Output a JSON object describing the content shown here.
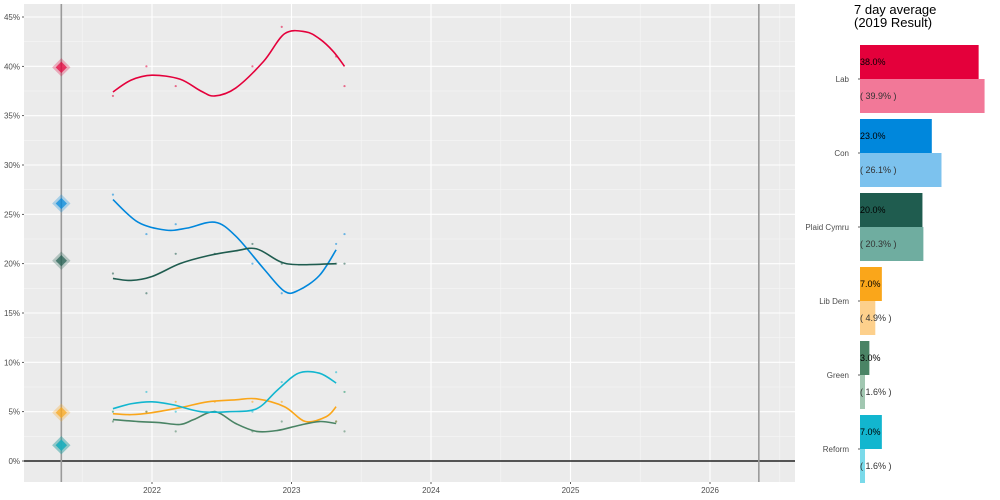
{
  "chart_data": [
    {
      "type": "line",
      "ylim": [
        0,
        46
      ],
      "xlim": [
        2021.1,
        2026.6
      ],
      "y_ticks": [
        0,
        5,
        10,
        15,
        20,
        25,
        30,
        35,
        40,
        45
      ],
      "y_tick_labels": [
        "0%",
        "5%",
        "10%",
        "15%",
        "20%",
        "25%",
        "30%",
        "35%",
        "40%",
        "45%"
      ],
      "x_ticks": [
        2022,
        2023,
        2024,
        2025,
        2026
      ],
      "x_tick_labels": [
        "2022",
        "2023",
        "2024",
        "2025",
        "2026"
      ],
      "election_lines": [
        2021.35,
        2026.35
      ],
      "grid": true,
      "series": [
        {
          "name": "Lab",
          "color": "#e4003b",
          "trend": [
            [
              2021.72,
              37.4
            ],
            [
              2021.85,
              38.6
            ],
            [
              2022.0,
              39.1
            ],
            [
              2022.2,
              38.7
            ],
            [
              2022.35,
              37.5
            ],
            [
              2022.45,
              37.0
            ],
            [
              2022.6,
              37.8
            ],
            [
              2022.8,
              40.5
            ],
            [
              2022.95,
              43.3
            ],
            [
              2023.1,
              43.5
            ],
            [
              2023.2,
              42.8
            ],
            [
              2023.3,
              41.5
            ],
            [
              2023.38,
              40.0
            ]
          ],
          "polls": [
            [
              2021.72,
              37
            ],
            [
              2021.96,
              40
            ],
            [
              2022.17,
              38
            ],
            [
              2022.72,
              40
            ],
            [
              2022.93,
              44
            ],
            [
              2023.32,
              41
            ],
            [
              2023.38,
              38
            ]
          ],
          "previous_result": 39.9
        },
        {
          "name": "Con",
          "color": "#0087dc",
          "trend": [
            [
              2021.72,
              26.5
            ],
            [
              2021.9,
              24.2
            ],
            [
              2022.1,
              23.4
            ],
            [
              2022.25,
              23.6
            ],
            [
              2022.45,
              24.2
            ],
            [
              2022.6,
              22.8
            ],
            [
              2022.8,
              19.5
            ],
            [
              2022.95,
              17.2
            ],
            [
              2023.05,
              17.3
            ],
            [
              2023.2,
              18.8
            ],
            [
              2023.32,
              21.4
            ]
          ],
          "polls": [
            [
              2021.72,
              27
            ],
            [
              2021.96,
              23
            ],
            [
              2022.17,
              24
            ],
            [
              2022.72,
              20
            ],
            [
              2022.93,
              17
            ],
            [
              2023.32,
              22
            ],
            [
              2023.38,
              23
            ]
          ],
          "previous_result": 26.1
        },
        {
          "name": "Plaid Cymru",
          "color": "#1f5c4f",
          "trend": [
            [
              2021.72,
              18.5
            ],
            [
              2021.85,
              18.3
            ],
            [
              2022.0,
              18.7
            ],
            [
              2022.2,
              20.0
            ],
            [
              2022.4,
              20.8
            ],
            [
              2022.6,
              21.3
            ],
            [
              2022.75,
              21.5
            ],
            [
              2022.92,
              20.2
            ],
            [
              2023.05,
              19.9
            ],
            [
              2023.32,
              20.0
            ]
          ],
          "polls": [
            [
              2021.72,
              19
            ],
            [
              2021.96,
              17
            ],
            [
              2022.17,
              21
            ],
            [
              2022.45,
              21
            ],
            [
              2022.72,
              22
            ],
            [
              2022.93,
              20
            ],
            [
              2023.32,
              20
            ],
            [
              2023.38,
              20
            ]
          ],
          "previous_result": 20.3
        },
        {
          "name": "Lib Dem",
          "color": "#faa61a",
          "trend": [
            [
              2021.72,
              4.8
            ],
            [
              2021.85,
              4.7
            ],
            [
              2022.0,
              4.9
            ],
            [
              2022.2,
              5.4
            ],
            [
              2022.4,
              6.0
            ],
            [
              2022.6,
              6.2
            ],
            [
              2022.75,
              6.3
            ],
            [
              2022.95,
              5.5
            ],
            [
              2023.1,
              4.0
            ],
            [
              2023.25,
              4.5
            ],
            [
              2023.32,
              5.5
            ]
          ],
          "polls": [
            [
              2021.72,
              5
            ],
            [
              2021.96,
              5
            ],
            [
              2022.17,
              6
            ],
            [
              2022.45,
              6
            ],
            [
              2022.72,
              6
            ],
            [
              2022.93,
              6
            ],
            [
              2023.32,
              4
            ],
            [
              2023.38,
              7
            ]
          ],
          "previous_result": 4.9
        },
        {
          "name": "Green",
          "color": "#4a8465",
          "trend": [
            [
              2021.72,
              4.2
            ],
            [
              2021.9,
              4.0
            ],
            [
              2022.05,
              3.9
            ],
            [
              2022.2,
              3.7
            ],
            [
              2022.3,
              4.2
            ],
            [
              2022.45,
              5.0
            ],
            [
              2022.6,
              3.8
            ],
            [
              2022.75,
              3.0
            ],
            [
              2022.9,
              3.1
            ],
            [
              2023.05,
              3.6
            ],
            [
              2023.2,
              4.0
            ],
            [
              2023.32,
              3.8
            ]
          ],
          "polls": [
            [
              2021.72,
              4
            ],
            [
              2021.96,
              5
            ],
            [
              2022.17,
              3
            ],
            [
              2022.45,
              5
            ],
            [
              2022.72,
              3
            ],
            [
              2022.93,
              4
            ],
            [
              2023.32,
              4
            ],
            [
              2023.38,
              3
            ]
          ],
          "previous_result": 1.6
        },
        {
          "name": "Reform",
          "color": "#12b6cf",
          "trend": [
            [
              2021.72,
              5.3
            ],
            [
              2021.85,
              5.8
            ],
            [
              2022.0,
              6.0
            ],
            [
              2022.15,
              5.7
            ],
            [
              2022.35,
              5.0
            ],
            [
              2022.55,
              5.0
            ],
            [
              2022.75,
              5.3
            ],
            [
              2022.9,
              7.2
            ],
            [
              2023.05,
              8.9
            ],
            [
              2023.2,
              8.9
            ],
            [
              2023.32,
              7.9
            ]
          ],
          "polls": [
            [
              2021.72,
              5
            ],
            [
              2021.96,
              7
            ],
            [
              2022.17,
              5
            ],
            [
              2022.45,
              5
            ],
            [
              2022.72,
              5
            ],
            [
              2022.93,
              8
            ],
            [
              2023.32,
              9
            ],
            [
              2023.38,
              7
            ]
          ],
          "previous_result": 1.6
        }
      ]
    },
    {
      "type": "bar",
      "title": "7 day average",
      "subtitle": "(2019 Result)",
      "xlim": [
        0,
        41
      ],
      "categories": [
        "Lab",
        "Con",
        "Plaid Cymru",
        "Lib Dem",
        "Green",
        "Reform"
      ],
      "series": [
        {
          "values": [
            38.0,
            23.0,
            20.0,
            7.0,
            3.0,
            7.0
          ],
          "labels": [
            "38.0%",
            "23.0%",
            "20.0%",
            "7.0%",
            "3.0%",
            "7.0%"
          ]
        },
        {
          "values": [
            39.9,
            26.1,
            20.3,
            4.9,
            1.6,
            1.6
          ],
          "labels": [
            "( 39.9% )",
            "( 26.1% )",
            "( 20.3% )",
            "( 4.9% )",
            "( 1.6% )",
            "( 1.6% )"
          ]
        }
      ],
      "colors_current": [
        "#e4003b",
        "#0087dc",
        "#1f5c4f",
        "#faa61a",
        "#4a8465",
        "#12b6cf"
      ],
      "colors_previous": [
        "#f27898",
        "#7cc2ee",
        "#6fada0",
        "#fdd08c",
        "#a1c7b1",
        "#7adaea"
      ]
    }
  ]
}
